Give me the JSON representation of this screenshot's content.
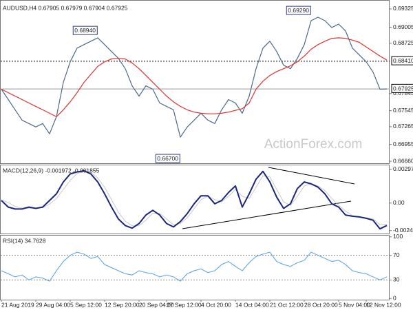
{
  "chart_data": [
    {
      "type": "line",
      "title": "AUDUSD,H4  0.67905 0.67979 0.67904 0.67925",
      "ylim": [
        0.66625,
        0.69433
      ],
      "yticks": [
        0.69325,
        0.69005,
        0.68725,
        0.67845,
        0.67545,
        0.67265,
        0.66955,
        {
          "value": 0.6666,
          "label": "0.66660"
        }
      ],
      "levels": [
        {
          "value": 0.6841,
          "label": "0.68410",
          "style": "dotted",
          "color": "#000000"
        },
        {
          "value": 0.67925,
          "style": "solid",
          "color": "#999999"
        }
      ],
      "annotations": [
        {
          "value": 0.6894,
          "label": "0.68940",
          "index": 14
        },
        {
          "value": 0.6929,
          "label": "0.69290",
          "index": 45
        },
        {
          "value": 0.667,
          "label": "0.66700",
          "index": 26
        }
      ],
      "watermark": "ActionForex.com",
      "series": [
        {
          "color": "#4a6a8a",
          "width": 1.2,
          "values": [
            0.6792,
            0.6774,
            0.6756,
            0.6738,
            0.6732,
            0.6726,
            0.6732,
            0.6714,
            0.6744,
            0.6804,
            0.684,
            0.6864,
            0.687,
            0.6876,
            0.6882,
            0.687,
            0.6858,
            0.6846,
            0.6828,
            0.6798,
            0.678,
            0.6798,
            0.6792,
            0.6768,
            0.6762,
            0.6756,
            0.6708,
            0.6726,
            0.6738,
            0.675,
            0.6738,
            0.6732,
            0.6756,
            0.6774,
            0.6768,
            0.675,
            0.678,
            0.6828,
            0.6864,
            0.6876,
            0.6858,
            0.6834,
            0.6828,
            0.6846,
            0.687,
            0.6912,
            0.6918,
            0.6912,
            0.69,
            0.6906,
            0.6894,
            0.6864,
            0.6852,
            0.684,
            0.6822,
            0.6792,
            0.67925
          ]
        },
        {
          "color": "#e0302a",
          "width": 1.2,
          "values": [
            0.6792,
            0.6786,
            0.678,
            0.6774,
            0.6768,
            0.6762,
            0.6756,
            0.675,
            0.6744,
            0.6756,
            0.677,
            0.6786,
            0.6804,
            0.6818,
            0.6832,
            0.684,
            0.6845,
            0.6846,
            0.6845,
            0.6838,
            0.6828,
            0.6816,
            0.6804,
            0.6792,
            0.678,
            0.677,
            0.6762,
            0.6756,
            0.6752,
            0.675,
            0.6749,
            0.6749,
            0.675,
            0.6752,
            0.6755,
            0.6758,
            0.6768,
            0.6792,
            0.6806,
            0.6816,
            0.6823,
            0.6828,
            0.6833,
            0.684,
            0.685,
            0.6862,
            0.687,
            0.6876,
            0.6881,
            0.6882,
            0.6881,
            0.6878,
            0.6874,
            0.6866,
            0.6858,
            0.685,
            0.6843
          ]
        }
      ]
    },
    {
      "type": "line",
      "title": "MACD(12,26,9) -0.001972 -0.001855",
      "ylim": [
        -0.00268,
        0.00332
      ],
      "yticks": [
        0.00297,
        {
          "value": 0,
          "label": "0.00"
        },
        -0.00242
      ],
      "series": [
        {
          "color": "#c8c8c8",
          "width": 1,
          "values": [
            0.0003,
            5e-05,
            -0.0003,
            -0.00045,
            -0.00045,
            -0.00043,
            -0.0004,
            -0.0001,
            0.0004,
            0.0012,
            0.002,
            0.0026,
            0.0028,
            0.0027,
            0.0022,
            0.0014,
            0.0003,
            -0.0008,
            -0.0016,
            -0.002,
            -0.002,
            -0.0015,
            -0.0009,
            -0.0009,
            -0.0014,
            -0.0019,
            -0.0018,
            -0.0013,
            -0.0005,
            0.0003,
            0.0006,
            0.0003,
            0.0001,
            0.0006,
            0.0012,
            0.0006,
            0.0004,
            0.0014,
            0.0024,
            0.0023,
            0.0012,
            0.0001,
            -0.0002,
            0.0006,
            0.0015,
            0.0017,
            0.0015,
            0.0011,
            0.0004,
            -0.0002,
            -0.0007,
            -0.0011,
            -0.0012,
            -0.0013,
            -0.0014,
            -0.0019,
            -0.00186
          ]
        },
        {
          "color": "#1a2580",
          "width": 2,
          "values": [
            0.00023,
            -0.00035,
            -0.00052,
            -0.00052,
            -0.00035,
            -0.00047,
            -0.00035,
            0.00023,
            0.00081,
            0.00186,
            0.00256,
            0.00274,
            0.00285,
            0.00256,
            0.00186,
            0.00081,
            -0.00035,
            -0.0014,
            -0.00198,
            -0.00221,
            -0.0018,
            -0.00105,
            -0.00064,
            -0.00105,
            -0.0018,
            -0.0021,
            -0.00163,
            -0.00093,
            -6e-05,
            0.00064,
            0.00064,
            -6e-05,
            0.00023,
            0.00093,
            0.00151,
            -0.00035,
            0.00081,
            0.0021,
            0.00279,
            0.00186,
            0.00052,
            -0.00047,
            -6e-05,
            0.00128,
            0.00186,
            0.00169,
            0.0014,
            0.00081,
            -6e-05,
            -0.00035,
            -0.00105,
            -0.00116,
            -0.00122,
            -0.00134,
            -0.00151,
            -0.00227,
            -0.00197
          ]
        }
      ]
    },
    {
      "type": "line",
      "title": "RSI(14) 34.7628",
      "ylim": [
        -2,
        102
      ],
      "yticks": [
        100,
        70,
        30,
        0
      ],
      "levels": [
        {
          "value": 70,
          "style": "dotted",
          "color": "#888888"
        },
        {
          "value": 30,
          "style": "dotted",
          "color": "#888888"
        }
      ],
      "categories": [
        "21 Aug 2019",
        null,
        null,
        null,
        null,
        "29 Aug 04:00",
        null,
        null,
        null,
        null,
        "5 Sep 12:00",
        null,
        null,
        null,
        null,
        "12 Sep 20:00",
        null,
        null,
        null,
        null,
        "20 Sep 04:00",
        null,
        null,
        null,
        "27 Sep 12:00",
        null,
        null,
        null,
        null,
        "4 Oct 20:00",
        null,
        null,
        null,
        null,
        "14 Oct 04:00",
        null,
        null,
        null,
        null,
        "21 Oct 12:00",
        null,
        null,
        null,
        null,
        "28 Oct 20:00",
        null,
        null,
        null,
        null,
        "5 Nov 04:00",
        null,
        null,
        null,
        "12 Nov 12:00",
        null,
        null,
        null
      ],
      "series": [
        {
          "color": "#4f9fe0",
          "width": 1,
          "values": [
            45,
            40,
            35,
            38,
            30,
            35,
            33,
            28,
            45,
            60,
            70,
            75,
            72,
            65,
            68,
            55,
            50,
            45,
            40,
            38,
            45,
            42,
            40,
            35,
            38,
            35,
            28,
            40,
            45,
            48,
            42,
            45,
            55,
            60,
            52,
            45,
            58,
            68,
            72,
            75,
            60,
            55,
            52,
            58,
            62,
            75,
            70,
            65,
            60,
            62,
            55,
            45,
            42,
            40,
            35,
            30,
            35
          ]
        }
      ]
    }
  ]
}
